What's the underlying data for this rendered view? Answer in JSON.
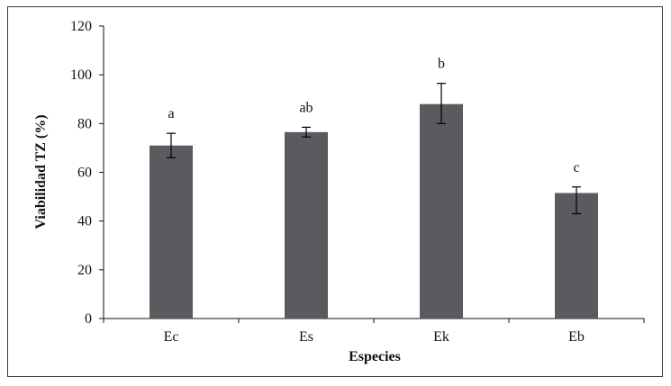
{
  "chart_data": {
    "type": "bar",
    "title": "",
    "xlabel": "Especies",
    "ylabel": "Viabilidad TZ (%)",
    "ylim": [
      0,
      120
    ],
    "yticks": [
      0,
      20,
      40,
      60,
      80,
      100,
      120
    ],
    "grid": false,
    "categories": [
      "Ec",
      "Es",
      "Ek",
      "Eb"
    ],
    "values": [
      71,
      76.5,
      88,
      51.5
    ],
    "error_low": [
      66,
      74.5,
      80,
      43
    ],
    "error_high": [
      76,
      78.5,
      96.5,
      54
    ],
    "significance_labels": [
      "a",
      "ab",
      "b",
      "c"
    ],
    "bar_color": "#5b5b5f"
  }
}
